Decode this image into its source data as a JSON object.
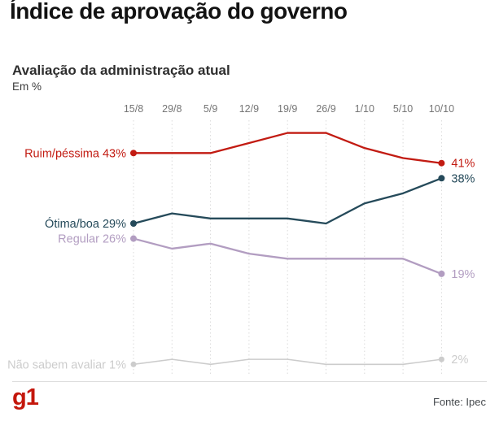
{
  "header": {
    "title": "Índice de aprovação do governo"
  },
  "chart": {
    "subtitle": "Avaliação da administração atual",
    "unit_label": "Em %"
  },
  "chart_data": {
    "type": "line",
    "title": "Avaliação da administração atual",
    "unit": "%",
    "x": [
      "15/8",
      "29/8",
      "5/9",
      "12/9",
      "19/9",
      "26/9",
      "1/10",
      "5/10",
      "10/10"
    ],
    "ylim": [
      0,
      50
    ],
    "grid": "vertical dotted line at each x tick",
    "legend_position": "inline labels at line start (name + first value) and line end (last value)",
    "series": [
      {
        "name": "Ruim/péssima",
        "slug": "ruim-pessima",
        "color": "#c21b12",
        "values": [
          43,
          43,
          43,
          45,
          47,
          47,
          44,
          42,
          41
        ],
        "start_label": "Ruim/péssima 43%",
        "end_label": "41%"
      },
      {
        "name": "Ótima/boa",
        "slug": "otima-boa",
        "color": "#254a5a",
        "values": [
          29,
          31,
          30,
          30,
          30,
          29,
          33,
          35,
          38
        ],
        "start_label": "Ótima/boa 29%",
        "end_label": "38%"
      },
      {
        "name": "Regular",
        "slug": "regular",
        "color": "#b29dc1",
        "values": [
          26,
          24,
          25,
          23,
          22,
          22,
          22,
          22,
          19
        ],
        "start_label": "Regular 26%",
        "end_label": "19%"
      },
      {
        "name": "Não sabem avaliar",
        "slug": "nao-sabem-avaliar",
        "color": "#cccccc",
        "values": [
          1,
          2,
          1,
          2,
          2,
          1,
          1,
          1,
          2
        ],
        "start_label": "Não sabem avaliar 1%",
        "end_label": "2%"
      }
    ],
    "tick_color": "#757575",
    "gridline_color": "#dadada"
  },
  "footer": {
    "logo_text": "g1",
    "logo_color": "#c4170c",
    "source": "Fonte: Ipec"
  }
}
